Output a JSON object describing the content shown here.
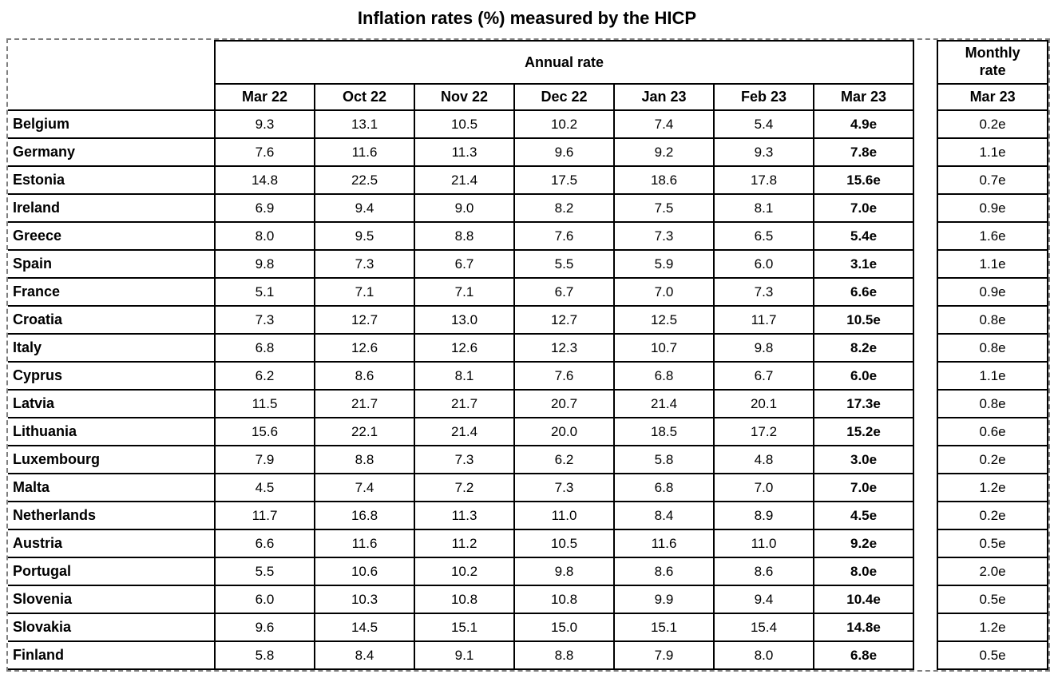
{
  "page": {
    "title": "Inflation rates (%) measured by the HICP"
  },
  "table": {
    "annual_header": "Annual rate",
    "monthly_header": "Monthly\nrate",
    "months": [
      "Mar 22",
      "Oct 22",
      "Nov 22",
      "Dec 22",
      "Jan 23",
      "Feb 23",
      "Mar 23"
    ],
    "monthly_month": "Mar 23",
    "rows": [
      {
        "country": "Belgium",
        "annual": [
          "9.3",
          "13.1",
          "10.5",
          "10.2",
          "7.4",
          "5.4",
          "4.9e"
        ],
        "monthly": "0.2e"
      },
      {
        "country": "Germany",
        "annual": [
          "7.6",
          "11.6",
          "11.3",
          "9.6",
          "9.2",
          "9.3",
          "7.8e"
        ],
        "monthly": "1.1e"
      },
      {
        "country": "Estonia",
        "annual": [
          "14.8",
          "22.5",
          "21.4",
          "17.5",
          "18.6",
          "17.8",
          "15.6e"
        ],
        "monthly": "0.7e"
      },
      {
        "country": "Ireland",
        "annual": [
          "6.9",
          "9.4",
          "9.0",
          "8.2",
          "7.5",
          "8.1",
          "7.0e"
        ],
        "monthly": "0.9e"
      },
      {
        "country": "Greece",
        "annual": [
          "8.0",
          "9.5",
          "8.8",
          "7.6",
          "7.3",
          "6.5",
          "5.4e"
        ],
        "monthly": "1.6e"
      },
      {
        "country": "Spain",
        "annual": [
          "9.8",
          "7.3",
          "6.7",
          "5.5",
          "5.9",
          "6.0",
          "3.1e"
        ],
        "monthly": "1.1e"
      },
      {
        "country": "France",
        "annual": [
          "5.1",
          "7.1",
          "7.1",
          "6.7",
          "7.0",
          "7.3",
          "6.6e"
        ],
        "monthly": "0.9e"
      },
      {
        "country": "Croatia",
        "annual": [
          "7.3",
          "12.7",
          "13.0",
          "12.7",
          "12.5",
          "11.7",
          "10.5e"
        ],
        "monthly": "0.8e"
      },
      {
        "country": "Italy",
        "annual": [
          "6.8",
          "12.6",
          "12.6",
          "12.3",
          "10.7",
          "9.8",
          "8.2e"
        ],
        "monthly": "0.8e"
      },
      {
        "country": "Cyprus",
        "annual": [
          "6.2",
          "8.6",
          "8.1",
          "7.6",
          "6.8",
          "6.7",
          "6.0e"
        ],
        "monthly": "1.1e"
      },
      {
        "country": "Latvia",
        "annual": [
          "11.5",
          "21.7",
          "21.7",
          "20.7",
          "21.4",
          "20.1",
          "17.3e"
        ],
        "monthly": "0.8e"
      },
      {
        "country": "Lithuania",
        "annual": [
          "15.6",
          "22.1",
          "21.4",
          "20.0",
          "18.5",
          "17.2",
          "15.2e"
        ],
        "monthly": "0.6e"
      },
      {
        "country": "Luxembourg",
        "annual": [
          "7.9",
          "8.8",
          "7.3",
          "6.2",
          "5.8",
          "4.8",
          "3.0e"
        ],
        "monthly": "0.2e"
      },
      {
        "country": "Malta",
        "annual": [
          "4.5",
          "7.4",
          "7.2",
          "7.3",
          "6.8",
          "7.0",
          "7.0e"
        ],
        "monthly": "1.2e"
      },
      {
        "country": "Netherlands",
        "annual": [
          "11.7",
          "16.8",
          "11.3",
          "11.0",
          "8.4",
          "8.9",
          "4.5e"
        ],
        "monthly": "0.2e"
      },
      {
        "country": "Austria",
        "annual": [
          "6.6",
          "11.6",
          "11.2",
          "10.5",
          "11.6",
          "11.0",
          "9.2e"
        ],
        "monthly": "0.5e"
      },
      {
        "country": "Portugal",
        "annual": [
          "5.5",
          "10.6",
          "10.2",
          "9.8",
          "8.6",
          "8.6",
          "8.0e"
        ],
        "monthly": "2.0e"
      },
      {
        "country": "Slovenia",
        "annual": [
          "6.0",
          "10.3",
          "10.8",
          "10.8",
          "9.9",
          "9.4",
          "10.4e"
        ],
        "monthly": "0.5e"
      },
      {
        "country": "Slovakia",
        "annual": [
          "9.6",
          "14.5",
          "15.1",
          "15.0",
          "15.1",
          "15.4",
          "14.8e"
        ],
        "monthly": "1.2e"
      },
      {
        "country": "Finland",
        "annual": [
          "5.8",
          "8.4",
          "9.1",
          "8.8",
          "7.9",
          "8.0",
          "6.8e"
        ],
        "monthly": "0.5e"
      }
    ]
  }
}
